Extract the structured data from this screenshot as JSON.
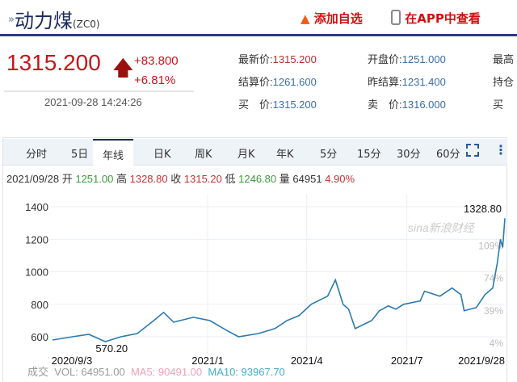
{
  "header": {
    "arrow": "»",
    "title": "动力煤",
    "code": "(ZC0)",
    "add_watchlist": "添加自选",
    "view_in_app": "在APP中查看",
    "icons": [
      "flame-icon",
      "phone-icon"
    ]
  },
  "quote": {
    "price": "1315.200",
    "change": "+83.800",
    "change_pct": "+6.81%",
    "timestamp": "2021-09-28 14:24:26",
    "up_color": "#c8141c",
    "fields": [
      {
        "label": "最新价:",
        "value": "1315.200"
      },
      {
        "label": "开盘价:",
        "value": "1251.000"
      },
      {
        "label": "最高",
        "value": ""
      },
      {
        "label": "结算价:",
        "value": "1261.600"
      },
      {
        "label": "昨结算:",
        "value": "1231.400"
      },
      {
        "label": "持仓",
        "value": ""
      },
      {
        "label": "买　价:",
        "value": "1315.200"
      },
      {
        "label": "卖　价:",
        "value": "1316.000"
      },
      {
        "label": "买",
        "value": ""
      }
    ]
  },
  "tabs": [
    "分时",
    "5日",
    "年线",
    "日K",
    "周K",
    "月K",
    "年K",
    "5分",
    "15分",
    "30分",
    "60分"
  ],
  "active_tab": "年线",
  "info": {
    "date": "2021/09/28",
    "open_label": "开",
    "open": "1251.00",
    "high_label": "高",
    "high": "1328.80",
    "close_label": "收",
    "close": "1315.20",
    "low_label": "低",
    "low": "1246.80",
    "vol_label": "量",
    "vol": "64951",
    "pct": "4.90%"
  },
  "volume": {
    "label": "成交",
    "vol": "VOL: 64951.00",
    "ma5": "MA5: 90491.00",
    "ma10": "MA10: 93967.70"
  },
  "chart_data": {
    "type": "line",
    "ylim": [
      600,
      1400
    ],
    "xlim": [
      "2020-08-13",
      "2021-09-28"
    ],
    "grid": true,
    "y_ticks": [
      "1400",
      "1200",
      "1000",
      "800",
      "600"
    ],
    "right_ticks": [
      "109%",
      "74%",
      "39%",
      "4%"
    ],
    "x_ticks": [
      {
        "date": "2020-09-03",
        "label": "2020/9/3"
      },
      {
        "date": "2021-01-01",
        "label": "2021/1"
      },
      {
        "date": "2021-04-01",
        "label": "2021/4"
      },
      {
        "date": "2021-07-01",
        "label": "2021/7"
      },
      {
        "date": "2021-09-28",
        "label": "2021/9/28"
      }
    ],
    "max_label": "1328.80",
    "min_label": "570.20",
    "watermark": "sina新浪财经",
    "line_color": "#2a7ab0",
    "points": [
      [
        "2020-08-13",
        580
      ],
      [
        "2020-08-31",
        600
      ],
      [
        "2020-09-15",
        615
      ],
      [
        "2020-09-30",
        570.2
      ],
      [
        "2020-10-14",
        600
      ],
      [
        "2020-10-29",
        620
      ],
      [
        "2020-11-13",
        700
      ],
      [
        "2020-11-22",
        750
      ],
      [
        "2020-12-01",
        690
      ],
      [
        "2020-12-19",
        720
      ],
      [
        "2021-01-03",
        700
      ],
      [
        "2021-01-18",
        640
      ],
      [
        "2021-01-29",
        600
      ],
      [
        "2021-02-16",
        620
      ],
      [
        "2021-03-03",
        650
      ],
      [
        "2021-03-14",
        700
      ],
      [
        "2021-03-25",
        730
      ],
      [
        "2021-04-05",
        800
      ],
      [
        "2021-04-20",
        850
      ],
      [
        "2021-04-27",
        950
      ],
      [
        "2021-05-04",
        800
      ],
      [
        "2021-05-09",
        770
      ],
      [
        "2021-05-15",
        650
      ],
      [
        "2021-05-30",
        700
      ],
      [
        "2021-06-06",
        760
      ],
      [
        "2021-06-14",
        790
      ],
      [
        "2021-06-21",
        770
      ],
      [
        "2021-06-28",
        800
      ],
      [
        "2021-07-13",
        820
      ],
      [
        "2021-07-17",
        880
      ],
      [
        "2021-07-31",
        850
      ],
      [
        "2021-08-11",
        900
      ],
      [
        "2021-08-19",
        860
      ],
      [
        "2021-08-22",
        760
      ],
      [
        "2021-09-02",
        780
      ],
      [
        "2021-09-10",
        860
      ],
      [
        "2021-09-17",
        900
      ],
      [
        "2021-09-21",
        1050
      ],
      [
        "2021-09-24",
        1200
      ],
      [
        "2021-09-26",
        1150
      ],
      [
        "2021-09-28",
        1328.8
      ]
    ]
  }
}
